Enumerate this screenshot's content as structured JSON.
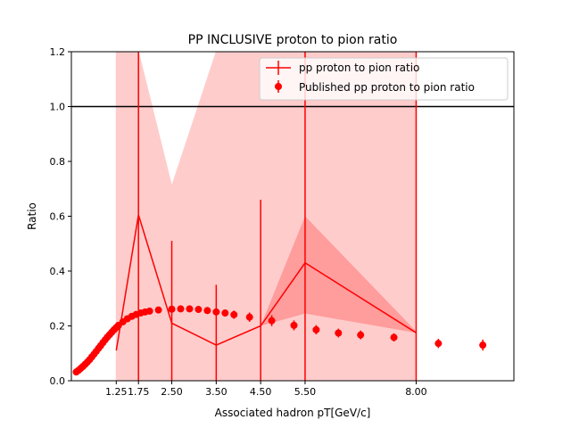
{
  "chart_data": {
    "type": "line",
    "title": "PP INCLUSIVE proton to pion ratio",
    "xlabel": "Associated hadron pT[GeV/c]",
    "ylabel": "Ratio",
    "xlim": [
      0.24,
      10.2
    ],
    "ylim": [
      0.0,
      1.2
    ],
    "xticks": [
      {
        "value": 1.25,
        "label": "1.25"
      },
      {
        "value": 1.75,
        "label": "1.75"
      },
      {
        "value": 2.5,
        "label": "2.50"
      },
      {
        "value": 3.5,
        "label": "3.50"
      },
      {
        "value": 4.5,
        "label": "4.50"
      },
      {
        "value": 5.5,
        "label": "5.50"
      },
      {
        "value": 8.0,
        "label": "8.00"
      }
    ],
    "yticks": [
      {
        "value": 0.0,
        "label": "0.0"
      },
      {
        "value": 0.2,
        "label": "0.2"
      },
      {
        "value": 0.4,
        "label": "0.4"
      },
      {
        "value": 0.6,
        "label": "0.6"
      },
      {
        "value": 0.8,
        "label": "0.8"
      },
      {
        "value": 1.0,
        "label": "1.0"
      },
      {
        "value": 1.2,
        "label": "1.2"
      }
    ],
    "grid": false,
    "legend_position": "top-right",
    "reference_line": {
      "y": 1.0,
      "color": "#000000"
    },
    "colors": {
      "series": "#ff0000",
      "outer_band": "#ffcccc",
      "inner_band": "#ff9c9c"
    },
    "series": [
      {
        "name": "pp proton to pion ratio",
        "style": "line-with-errorbars",
        "x": [
          1.25,
          1.75,
          2.5,
          3.5,
          4.5,
          5.5,
          8.0
        ],
        "y": [
          0.11,
          0.605,
          0.21,
          0.13,
          0.2,
          0.43,
          0.175
        ],
        "yerr_low": [
          0.0,
          0.7,
          0.3,
          0.2,
          0.2,
          0.55,
          0.3
        ],
        "yerr_high": [
          0.0,
          0.7,
          0.3,
          0.22,
          0.46,
          0.9,
          1.2
        ],
        "xerr": [
          0.0,
          0.0,
          0.0,
          0.0,
          0.0,
          0.0,
          0.0
        ],
        "outer_band_low": [
          0.0,
          0.0,
          0.0,
          0.0,
          0.0,
          0.0,
          0.0
        ],
        "outer_band_high": [
          1.2,
          1.2,
          0.71,
          1.2,
          1.2,
          1.2,
          1.2
        ],
        "inner_band_low": [
          null,
          null,
          null,
          null,
          0.2,
          0.245,
          0.175
        ],
        "inner_band_high": [
          null,
          null,
          null,
          null,
          0.2,
          0.6,
          0.18
        ]
      },
      {
        "name": "Published pp proton to pion ratio",
        "style": "points-with-errorbars",
        "x": [
          0.35,
          0.4,
          0.45,
          0.5,
          0.55,
          0.6,
          0.65,
          0.7,
          0.75,
          0.8,
          0.85,
          0.9,
          0.95,
          1.0,
          1.05,
          1.1,
          1.15,
          1.2,
          1.25,
          1.3,
          1.4,
          1.5,
          1.6,
          1.7,
          1.8,
          1.9,
          2.0,
          2.2,
          2.5,
          2.7,
          2.9,
          3.1,
          3.3,
          3.5,
          3.7,
          3.9,
          4.25,
          4.75,
          5.25,
          5.75,
          6.25,
          6.75,
          7.5,
          8.5,
          9.5
        ],
        "y": [
          0.032,
          0.038,
          0.045,
          0.052,
          0.06,
          0.068,
          0.077,
          0.087,
          0.097,
          0.107,
          0.118,
          0.128,
          0.139,
          0.149,
          0.159,
          0.168,
          0.177,
          0.186,
          0.194,
          0.202,
          0.215,
          0.226,
          0.235,
          0.242,
          0.247,
          0.251,
          0.254,
          0.258,
          0.261,
          0.262,
          0.262,
          0.26,
          0.256,
          0.251,
          0.247,
          0.241,
          0.232,
          0.219,
          0.202,
          0.186,
          0.174,
          0.167,
          0.158,
          0.136,
          0.13
        ],
        "yerr": [
          0.004,
          0.004,
          0.004,
          0.004,
          0.004,
          0.004,
          0.004,
          0.004,
          0.004,
          0.004,
          0.004,
          0.004,
          0.004,
          0.004,
          0.004,
          0.005,
          0.005,
          0.005,
          0.005,
          0.005,
          0.005,
          0.005,
          0.006,
          0.006,
          0.006,
          0.006,
          0.007,
          0.007,
          0.008,
          0.008,
          0.009,
          0.01,
          0.011,
          0.012,
          0.013,
          0.015,
          0.017,
          0.02,
          0.018,
          0.017,
          0.016,
          0.016,
          0.015,
          0.017,
          0.02
        ]
      }
    ]
  }
}
